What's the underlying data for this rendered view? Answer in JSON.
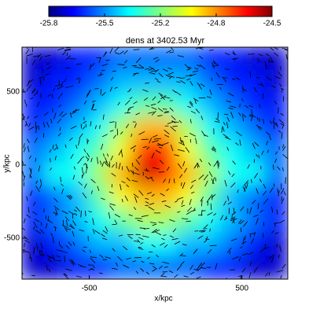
{
  "chart_data": {
    "type": "heatmap",
    "title": "dens at 3402.53 Myr",
    "x_label": "x/kpc",
    "y_label": "y/kpc",
    "xlim": [
      -940,
      800
    ],
    "ylim": [
      -780,
      806
    ],
    "xticks": [
      -500,
      500
    ],
    "yticks": [
      -500,
      0,
      500
    ],
    "colormap": "jet",
    "clim": [
      -25.8,
      -24.5
    ],
    "cticks": [
      -25.8,
      {
        "value": -25.475,
        "label": "-25.5"
      },
      {
        "value": -25.15,
        "label": "-25.2"
      },
      {
        "value": -24.825,
        "label": "-24.8"
      },
      -24.5
    ],
    "z": [
      [
        -25.7,
        -25.7,
        -25.6,
        -25.6,
        -25.5,
        -25.5,
        -25.5,
        -25.5,
        -25.6,
        -25.6,
        -25.7,
        -25.7
      ],
      [
        -25.7,
        -25.6,
        -25.6,
        -25.5,
        -25.4,
        -25.4,
        -25.4,
        -25.4,
        -25.5,
        -25.6,
        -25.6,
        -25.7
      ],
      [
        -25.6,
        -25.6,
        -25.5,
        -25.4,
        -25.3,
        -25.2,
        -25.2,
        -25.3,
        -25.4,
        -25.5,
        -25.6,
        -25.6
      ],
      [
        -25.6,
        -25.5,
        -25.4,
        -25.3,
        -25.1,
        -24.9,
        -24.9,
        -25.1,
        -25.3,
        -25.4,
        -25.5,
        -25.6
      ],
      [
        -25.5,
        -25.4,
        -25.3,
        -25.2,
        -25.0,
        -24.7,
        -24.7,
        -25.0,
        -25.2,
        -25.3,
        -25.4,
        -25.5
      ],
      [
        -25.5,
        -25.3,
        -25.3,
        -25.1,
        -24.9,
        -24.6,
        -24.7,
        -24.9,
        -25.1,
        -25.3,
        -25.3,
        -25.5
      ],
      [
        -25.6,
        -25.5,
        -25.4,
        -25.2,
        -25.0,
        -24.9,
        -24.9,
        -25.0,
        -25.2,
        -25.4,
        -25.5,
        -25.6
      ],
      [
        -25.6,
        -25.5,
        -25.4,
        -25.3,
        -25.2,
        -25.1,
        -25.1,
        -25.2,
        -25.3,
        -25.4,
        -25.5,
        -25.6
      ],
      [
        -25.7,
        -25.6,
        -25.5,
        -25.4,
        -25.4,
        -25.3,
        -25.3,
        -25.4,
        -25.4,
        -25.5,
        -25.6,
        -25.7
      ],
      [
        -25.7,
        -25.7,
        -25.6,
        -25.6,
        -25.5,
        -25.5,
        -25.5,
        -25.5,
        -25.6,
        -25.6,
        -25.7,
        -25.7
      ]
    ]
  }
}
